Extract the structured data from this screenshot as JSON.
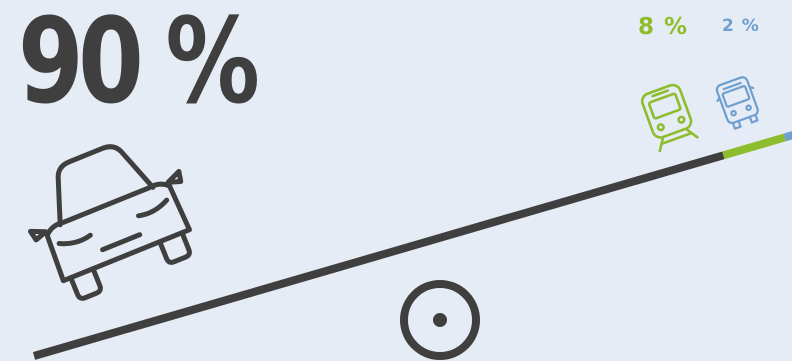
{
  "stats": {
    "car": {
      "label": "90 %",
      "value": 90,
      "icon": "car-icon",
      "color": "#3f3f3f"
    },
    "train": {
      "label": "8 %",
      "value": 8,
      "icon": "train-icon",
      "color": "#8dbd2c"
    },
    "bus": {
      "label": "2 %",
      "value": 2,
      "icon": "bus-icon",
      "color": "#6f9fcf"
    }
  },
  "pivot": {
    "icon": "pivot-icon",
    "color": "#3f3f3f"
  },
  "background": "#e6ecf5"
}
